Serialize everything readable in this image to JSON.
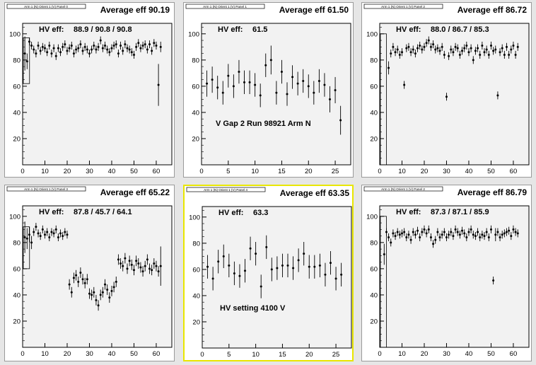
{
  "canvas": {
    "background": "#e6e6e6",
    "pad_background": "#f2f2f2",
    "highlight_color": "#e8e600"
  },
  "chart_data": [
    {
      "type": "scatter",
      "panel_label": "Arm 1 (N) Orient 1 (V) Panel 0",
      "avg_title": "Average eff 90.19",
      "hv_label": "HV eff:",
      "hv_values": "88.9 / 90.8 / 90.8",
      "annotation": "",
      "xlim": [
        0,
        67
      ],
      "ylim": [
        0,
        108
      ],
      "xticks": [
        0,
        10,
        20,
        30,
        40,
        50,
        60
      ],
      "yticks": [
        20,
        40,
        60,
        80,
        100
      ],
      "x": [
        1,
        2,
        3,
        4,
        5,
        6,
        7,
        8,
        9,
        10,
        11,
        12,
        13,
        14,
        15,
        16,
        17,
        18,
        19,
        20,
        21,
        22,
        23,
        24,
        25,
        26,
        27,
        28,
        29,
        30,
        31,
        32,
        33,
        34,
        35,
        36,
        37,
        38,
        39,
        40,
        41,
        42,
        43,
        44,
        45,
        46,
        47,
        48,
        49,
        50,
        51,
        52,
        53,
        54,
        55,
        56,
        57,
        58,
        59,
        60,
        61,
        62
      ],
      "y": [
        85,
        79,
        94,
        91,
        88,
        85,
        91,
        87,
        90,
        89,
        86,
        91,
        85,
        89,
        83,
        89,
        86,
        90,
        92,
        87,
        89,
        91,
        85,
        88,
        89,
        92,
        87,
        90,
        88,
        85,
        88,
        91,
        88,
        90,
        95,
        89,
        91,
        88,
        86,
        89,
        91,
        92,
        85,
        91,
        87,
        92,
        89,
        88,
        86,
        84,
        90,
        93,
        89,
        91,
        92,
        88,
        92,
        87,
        93,
        91,
        61,
        90
      ],
      "yerr": [
        13,
        6,
        3,
        3,
        3,
        3,
        3,
        3,
        3,
        3,
        3,
        3,
        3,
        3,
        3,
        3,
        3,
        3,
        3,
        3,
        3,
        3,
        3,
        3,
        3,
        3,
        3,
        3,
        3,
        3,
        3,
        3,
        3,
        3,
        3,
        3,
        3,
        3,
        3,
        3,
        3,
        3,
        3,
        3,
        3,
        3,
        3,
        3,
        3,
        3,
        3,
        3,
        3,
        3,
        3,
        3,
        3,
        3,
        3,
        3,
        16,
        4
      ],
      "boxes": [
        {
          "x0": 0.3,
          "x1": 3.1,
          "y0": 62,
          "y1": 97
        }
      ]
    },
    {
      "type": "scatter",
      "panel_label": "Arm 1 (N) Orient 1 (V) Panel 1",
      "avg_title": "Average eff 61.50",
      "hv_label": "HV eff:",
      "hv_values": "61.5",
      "annotation": "V Gap 2 Run 98921 Arm N",
      "xlim": [
        0,
        27.9
      ],
      "ylim": [
        0,
        108
      ],
      "xticks": [
        0,
        5,
        10,
        15,
        20,
        25
      ],
      "yticks": [
        20,
        40,
        60,
        80,
        100
      ],
      "x": [
        1,
        2,
        3,
        4,
        5,
        6,
        7,
        8,
        9,
        10,
        11,
        12,
        13,
        14,
        15,
        16,
        17,
        18,
        19,
        20,
        21,
        22,
        23,
        24,
        25,
        26
      ],
      "y": [
        62,
        65,
        59,
        55,
        68,
        60,
        71,
        63,
        63,
        61,
        53,
        76,
        80,
        55,
        71,
        54,
        67,
        62,
        64,
        60,
        55,
        64,
        61,
        50,
        57,
        34
      ],
      "yerr": [
        10,
        10,
        9,
        9,
        9,
        9,
        9,
        9,
        9,
        9,
        9,
        9,
        11,
        9,
        9,
        9,
        9,
        9,
        9,
        9,
        9,
        9,
        9,
        10,
        10,
        11
      ],
      "boxes": []
    },
    {
      "type": "scatter",
      "panel_label": "Arm 1 (N) Orient 1 (V) Panel 2",
      "avg_title": "Average eff 86.72",
      "hv_label": "HV eff:",
      "hv_values": "88.0 / 86.7 / 85.3",
      "annotation": "",
      "xlim": [
        0,
        67
      ],
      "ylim": [
        0,
        108
      ],
      "xticks": [
        0,
        10,
        20,
        30,
        40,
        50,
        60
      ],
      "yticks": [
        20,
        40,
        60,
        80,
        100
      ],
      "x": [
        4,
        5,
        6,
        7,
        8,
        9,
        10,
        11,
        12,
        13,
        14,
        15,
        16,
        17,
        18,
        19,
        20,
        21,
        22,
        23,
        24,
        25,
        26,
        27,
        28,
        29,
        30,
        31,
        32,
        33,
        34,
        35,
        36,
        37,
        38,
        39,
        40,
        41,
        42,
        43,
        44,
        45,
        46,
        47,
        48,
        49,
        50,
        51,
        52,
        53,
        54,
        55,
        56,
        57,
        58,
        59,
        60,
        61,
        62
      ],
      "y": [
        74,
        85,
        90,
        86,
        88,
        84,
        86,
        61,
        89,
        90,
        86,
        88,
        85,
        89,
        91,
        88,
        90,
        93,
        95,
        90,
        92,
        88,
        89,
        87,
        90,
        84,
        52,
        83,
        88,
        86,
        90,
        89,
        84,
        87,
        89,
        91,
        86,
        89,
        80,
        87,
        89,
        84,
        91,
        86,
        88,
        84,
        91,
        87,
        88,
        53,
        86,
        89,
        84,
        90,
        84,
        88,
        91,
        84,
        90
      ],
      "yerr": [
        5,
        3,
        3,
        3,
        3,
        3,
        3,
        3,
        3,
        3,
        3,
        3,
        3,
        3,
        3,
        3,
        3,
        3,
        3,
        3,
        3,
        3,
        3,
        3,
        3,
        3,
        3,
        3,
        3,
        3,
        3,
        3,
        3,
        3,
        3,
        3,
        3,
        3,
        3,
        3,
        3,
        3,
        3,
        3,
        3,
        3,
        3,
        3,
        3,
        3,
        3,
        3,
        3,
        3,
        3,
        3,
        3,
        3,
        3
      ],
      "boxes": [
        {
          "x0": 0.3,
          "x1": 3.0,
          "y0": 0,
          "y1": 100
        }
      ]
    },
    {
      "type": "scatter",
      "panel_label": "Arm 1 (N) Orient 1 (V) Panel 3",
      "avg_title": "Average eff 65.22",
      "hv_label": "HV eff:",
      "hv_values": "87.8 / 45.7 / 64.1",
      "annotation": "",
      "xlim": [
        0,
        67
      ],
      "ylim": [
        0,
        108
      ],
      "xticks": [
        0,
        10,
        20,
        30,
        40,
        50,
        60
      ],
      "yticks": [
        20,
        40,
        60,
        80,
        100
      ],
      "x": [
        1,
        2,
        3,
        4,
        5,
        6,
        7,
        8,
        9,
        10,
        11,
        12,
        13,
        14,
        15,
        16,
        17,
        18,
        19,
        20,
        21,
        22,
        23,
        24,
        25,
        26,
        27,
        28,
        29,
        30,
        31,
        32,
        33,
        34,
        35,
        36,
        37,
        38,
        39,
        40,
        41,
        42,
        43,
        44,
        45,
        46,
        47,
        48,
        49,
        50,
        51,
        52,
        53,
        54,
        55,
        56,
        57,
        58,
        59,
        60,
        61,
        62
      ],
      "y": [
        84,
        83,
        86,
        80,
        88,
        92,
        87,
        85,
        90,
        86,
        88,
        84,
        88,
        87,
        90,
        84,
        87,
        85,
        88,
        86,
        48,
        42,
        53,
        55,
        50,
        57,
        52,
        49,
        52,
        41,
        40,
        42,
        36,
        32,
        40,
        42,
        48,
        44,
        38,
        43,
        46,
        50,
        67,
        64,
        62,
        68,
        60,
        66,
        63,
        59,
        66,
        64,
        61,
        58,
        62,
        67,
        60,
        59,
        64,
        62,
        58,
        62
      ],
      "yerr": [
        12,
        8,
        6,
        5,
        3,
        3,
        3,
        3,
        3,
        3,
        3,
        3,
        3,
        3,
        3,
        3,
        3,
        3,
        3,
        3,
        4,
        4,
        4,
        4,
        4,
        4,
        4,
        4,
        4,
        4,
        4,
        4,
        4,
        4,
        4,
        4,
        4,
        4,
        4,
        4,
        4,
        4,
        4,
        4,
        4,
        4,
        4,
        4,
        4,
        4,
        4,
        4,
        4,
        4,
        4,
        4,
        4,
        4,
        4,
        4,
        4,
        15
      ],
      "boxes": [
        {
          "x0": 0.3,
          "x1": 3.1,
          "y0": 60,
          "y1": 92
        }
      ]
    },
    {
      "type": "scatter",
      "panel_label": "Arm 1 (N) Orient 1 (V) Panel 4",
      "avg_title": "Average eff 63.35",
      "hv_label": "HV eff:",
      "hv_values": "63.3",
      "annotation": "HV setting 4100 V",
      "xlim": [
        0,
        27.9
      ],
      "ylim": [
        0,
        108
      ],
      "xticks": [
        0,
        5,
        10,
        15,
        20,
        25
      ],
      "yticks": [
        20,
        40,
        60,
        80,
        100
      ],
      "x": [
        1,
        2,
        3,
        4,
        5,
        6,
        7,
        8,
        9,
        10,
        11,
        12,
        13,
        14,
        15,
        16,
        17,
        18,
        19,
        20,
        21,
        22,
        23,
        24,
        25,
        26
      ],
      "y": [
        62,
        53,
        66,
        70,
        63,
        57,
        55,
        59,
        76,
        72,
        47,
        77,
        60,
        61,
        63,
        63,
        61,
        67,
        72,
        62,
        62,
        63,
        56,
        65,
        53,
        56
      ],
      "yerr": [
        9,
        9,
        9,
        9,
        9,
        9,
        9,
        9,
        9,
        9,
        9,
        9,
        9,
        9,
        9,
        9,
        9,
        9,
        9,
        9,
        9,
        9,
        9,
        9,
        9,
        9
      ],
      "boxes": []
    },
    {
      "type": "scatter",
      "panel_label": "Arm 1 (N) Orient 1 (V) Panel 2",
      "avg_title": "Average eff 86.79",
      "hv_label": "HV eff:",
      "hv_values": "87.3 / 87.1 / 85.9",
      "annotation": "",
      "xlim": [
        0,
        67
      ],
      "ylim": [
        0,
        108
      ],
      "xticks": [
        0,
        10,
        20,
        30,
        40,
        50,
        60
      ],
      "yticks": [
        20,
        40,
        60,
        80,
        100
      ],
      "x": [
        2,
        3,
        4,
        5,
        6,
        7,
        8,
        9,
        10,
        11,
        12,
        13,
        14,
        15,
        16,
        17,
        18,
        19,
        20,
        21,
        22,
        23,
        24,
        25,
        26,
        27,
        28,
        29,
        30,
        31,
        32,
        33,
        34,
        35,
        36,
        37,
        38,
        39,
        40,
        41,
        42,
        43,
        44,
        45,
        46,
        47,
        48,
        49,
        50,
        51,
        52,
        53,
        54,
        55,
        56,
        57,
        58,
        59,
        60,
        61,
        62
      ],
      "y": [
        71,
        88,
        84,
        80,
        87,
        85,
        88,
        86,
        87,
        88,
        84,
        86,
        82,
        88,
        86,
        89,
        84,
        88,
        90,
        87,
        90,
        84,
        79,
        82,
        88,
        84,
        86,
        88,
        84,
        86,
        88,
        85,
        90,
        88,
        86,
        89,
        87,
        84,
        88,
        90,
        86,
        85,
        88,
        84,
        86,
        85,
        88,
        84,
        90,
        51,
        86,
        88,
        84,
        86,
        87,
        88,
        89,
        85,
        90,
        88,
        87
      ],
      "yerr": [
        8,
        3,
        3,
        3,
        3,
        3,
        3,
        3,
        3,
        3,
        3,
        3,
        3,
        3,
        3,
        3,
        3,
        3,
        3,
        3,
        3,
        3,
        3,
        3,
        3,
        3,
        3,
        3,
        3,
        3,
        3,
        3,
        3,
        3,
        3,
        3,
        3,
        3,
        3,
        3,
        3,
        3,
        3,
        3,
        3,
        3,
        3,
        3,
        3,
        3,
        5,
        3,
        3,
        3,
        3,
        3,
        3,
        3,
        3,
        3,
        3
      ],
      "boxes": [
        {
          "x0": 0.3,
          "x1": 3.0,
          "y0": 0,
          "y1": 100
        }
      ]
    }
  ]
}
